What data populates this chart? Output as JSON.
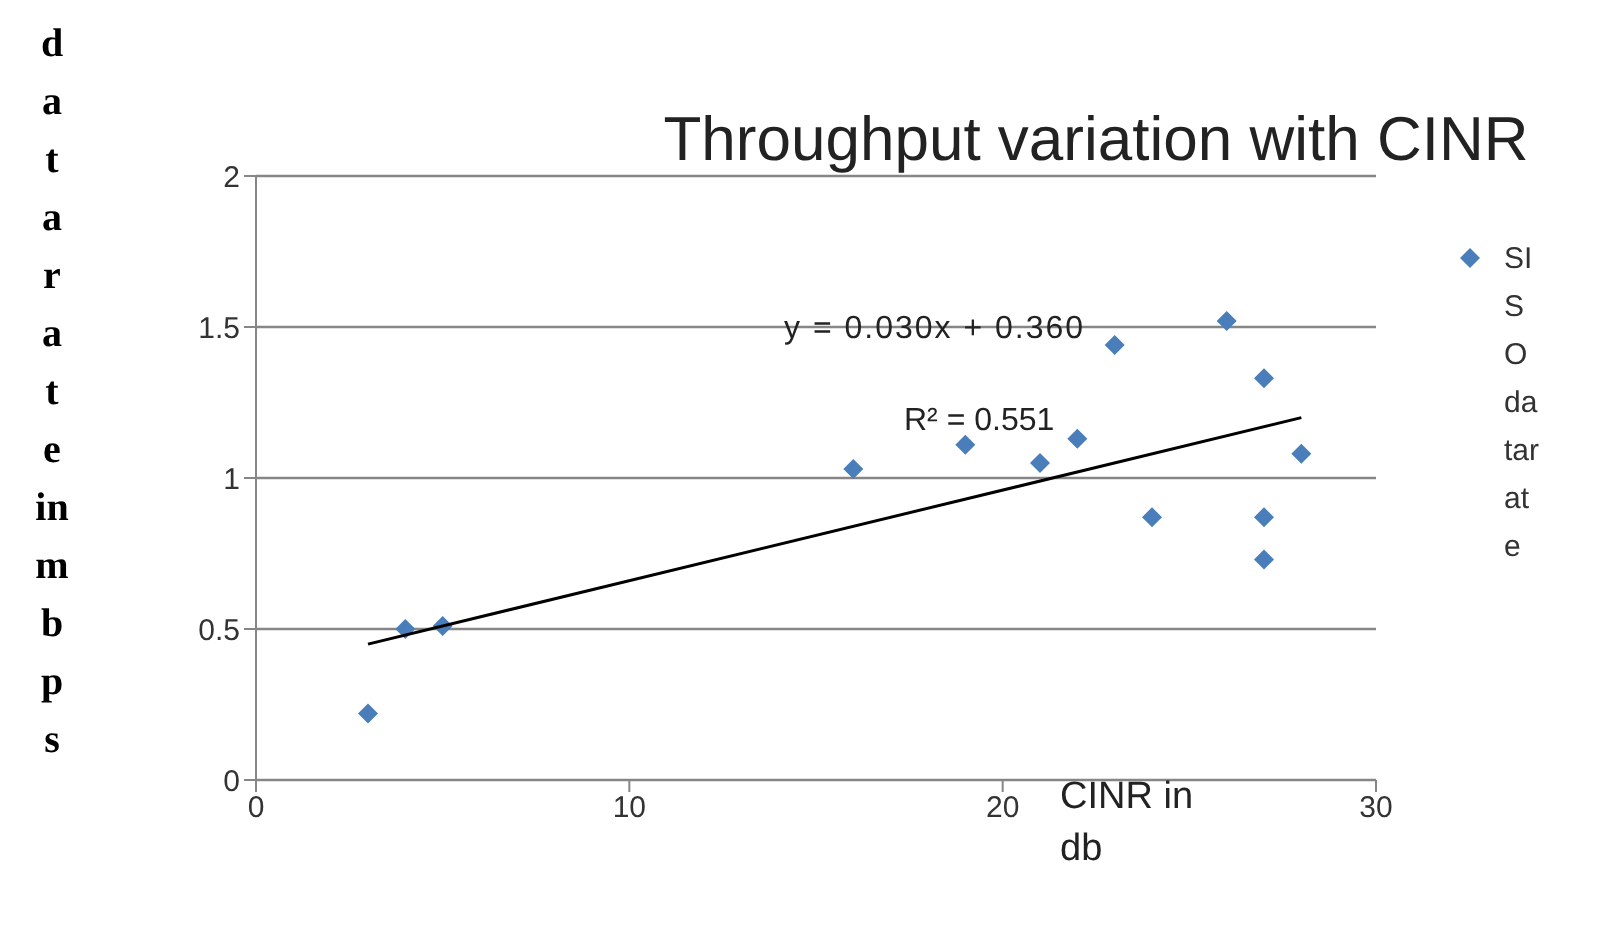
{
  "chart_data": {
    "type": "scatter",
    "title": "Throughput variation with CINR",
    "xlabel": "CINR in db",
    "ylabel": "datarate in mbps",
    "annotations": [
      "y = 0.030x + 0.360",
      "R² = 0.551"
    ],
    "xlim": [
      0,
      30
    ],
    "xticks": [
      0,
      10,
      20,
      30
    ],
    "ylim": [
      0,
      2
    ],
    "yticks": [
      0,
      0.5,
      1,
      1.5,
      2
    ],
    "grid": "y",
    "legend": "right",
    "marker": "diamond",
    "series": [
      {
        "name": "SISO datarate",
        "color": "#4a7ebb",
        "x": [
          3,
          4,
          5,
          16,
          19,
          21,
          22,
          23,
          24,
          26,
          27,
          27,
          27,
          28
        ],
        "values": [
          0.22,
          0.5,
          0.51,
          1.03,
          1.11,
          1.05,
          1.13,
          1.44,
          0.87,
          1.52,
          1.33,
          0.87,
          0.73,
          1.08
        ]
      },
      {
        "type": "line",
        "marker": "none",
        "color": "#000000",
        "x": [
          3,
          28
        ],
        "values": [
          0.45,
          1.2
        ]
      }
    ]
  }
}
